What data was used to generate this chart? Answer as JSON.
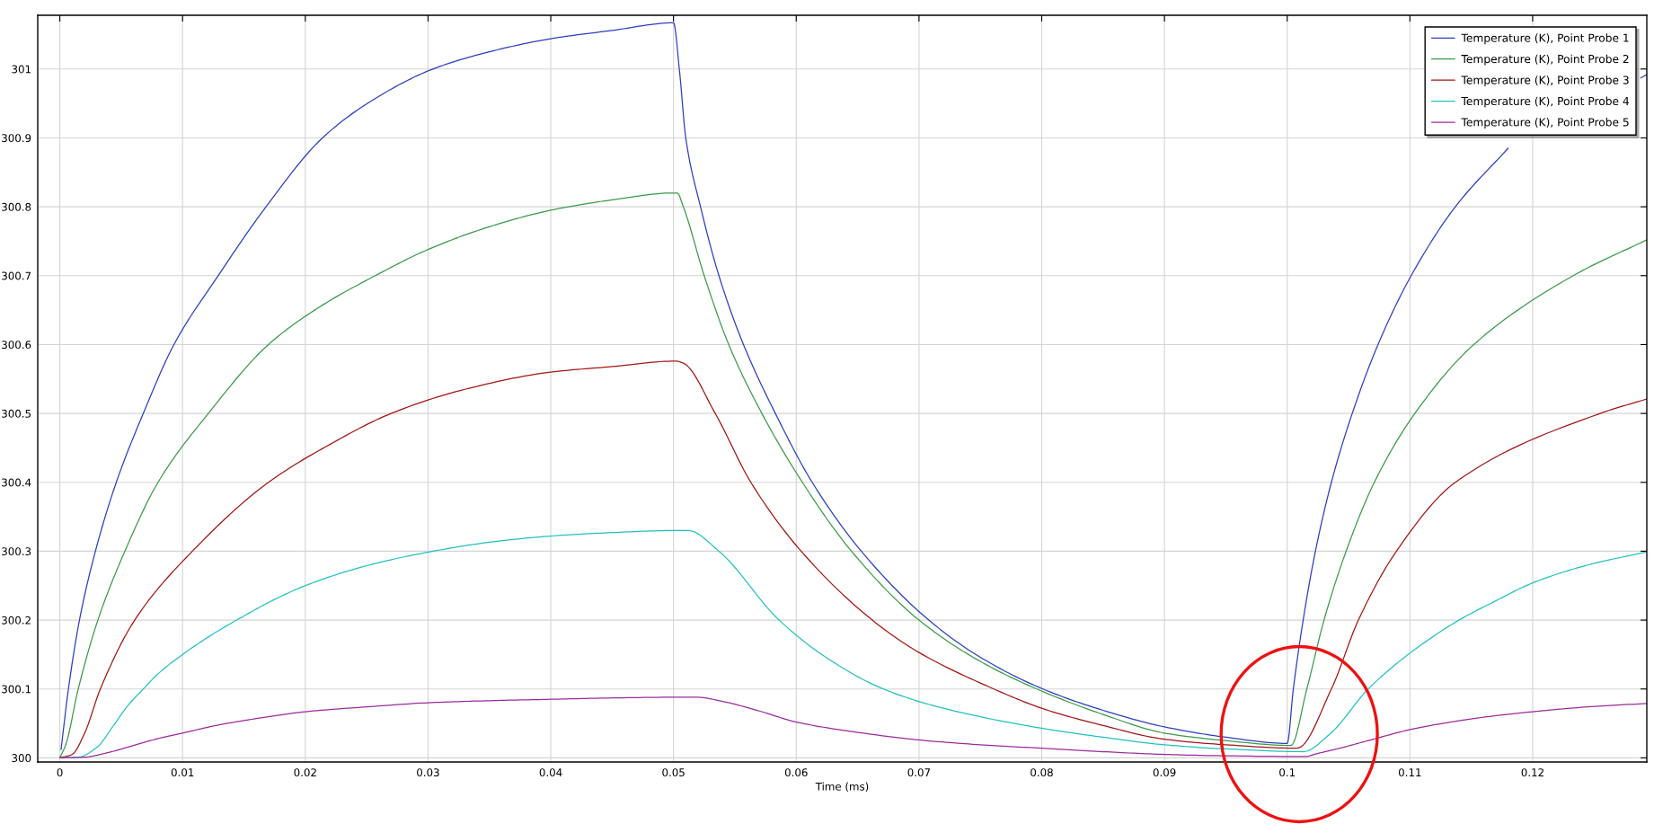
{
  "chart_data": {
    "type": "line",
    "xlabel": "Time (ms)",
    "xlim": [
      -0.0018,
      0.1293
    ],
    "ylim": [
      299.994,
      301.078
    ],
    "xticks": [
      0,
      0.01,
      0.02,
      0.03,
      0.04,
      0.05,
      0.06,
      0.07,
      0.08,
      0.09,
      0.1,
      0.11,
      0.12
    ],
    "yticks": [
      300,
      300.1,
      300.2,
      300.3,
      300.4,
      300.5,
      300.6,
      300.7,
      300.8,
      300.9,
      301
    ],
    "grid": true,
    "legend": "top right",
    "line_style": "solid",
    "series": [
      {
        "name": "Temperature (K), Point Probe 1",
        "color": "#2b3fbf",
        "x": [
          0.0001,
          0.0007,
          0.0016,
          0.0029,
          0.0046,
          0.0068,
          0.0093,
          0.0129,
          0.0168,
          0.0214,
          0.0255,
          0.0304,
          0.035,
          0.04,
          0.045,
          0.05,
          0.0505,
          0.051,
          0.0522,
          0.0537,
          0.0557,
          0.0583,
          0.0613,
          0.0653,
          0.0708,
          0.075,
          0.0801,
          0.085,
          0.09,
          0.095,
          0.1,
          0.1005,
          0.1013,
          0.1023,
          0.1036,
          0.1053,
          0.1074,
          0.1101,
          0.1137,
          0.118,
          0.124,
          0.1288,
          0.1293
        ],
        "values": [
          300.012,
          300.1,
          300.2,
          300.3,
          300.4,
          300.5,
          300.6,
          300.7,
          300.8,
          300.9,
          300.955,
          301.0,
          301.025,
          301.044,
          301.056,
          301.067,
          300.995,
          300.9,
          300.8,
          300.7,
          300.6,
          300.5,
          300.4,
          300.3,
          300.2,
          300.146,
          300.1,
          300.069,
          300.045,
          300.03,
          300.021,
          300.1,
          300.2,
          300.3,
          300.4,
          300.5,
          300.6,
          300.7,
          300.8,
          300.885,
          null,
          300.987,
          300.992
        ]
      },
      {
        "name": "Temperature (K), Point Probe 2",
        "color": "#3a9a4a",
        "x": [
          0,
          0.0005,
          0.0015,
          0.0031,
          0.0053,
          0.008,
          0.0121,
          0.017,
          0.0212,
          0.0257,
          0.03,
          0.035,
          0.04,
          0.045,
          0.05,
          0.0503,
          0.0508,
          0.0525,
          0.0545,
          0.0572,
          0.0605,
          0.0645,
          0.07,
          0.075,
          0.0796,
          0.085,
          0.09,
          0.095,
          0.1003,
          0.1016,
          0.103,
          0.1048,
          0.1071,
          0.1104,
          0.1152,
          0.1233,
          0.1293
        ],
        "values": [
          300,
          300.02,
          300.1,
          300.2,
          300.3,
          300.4,
          300.5,
          300.6,
          300.655,
          300.7,
          300.738,
          300.771,
          300.795,
          300.81,
          300.82,
          300.82,
          300.8,
          300.7,
          300.6,
          300.5,
          300.4,
          300.3,
          300.2,
          300.14,
          300.1,
          300.063,
          300.036,
          300.025,
          300.018,
          300.1,
          300.2,
          300.3,
          300.4,
          300.5,
          300.6,
          300.7,
          300.752
        ]
      },
      {
        "name": "Temperature (K), Point Probe 3",
        "color": "#a31515",
        "x": [
          0,
          0.001,
          0.002,
          0.0033,
          0.0061,
          0.0108,
          0.017,
          0.022,
          0.027,
          0.033,
          0.04,
          0.045,
          0.0502,
          0.0508,
          0.0534,
          0.0563,
          0.0604,
          0.0662,
          0.07,
          0.0761,
          0.08,
          0.085,
          0.09,
          0.095,
          0.1008,
          0.1036,
          0.1058,
          0.1089,
          0.1137,
          0.1255,
          0.1293
        ],
        "values": [
          300,
          300.005,
          300.035,
          300.1,
          300.2,
          300.3,
          300.4,
          300.455,
          300.5,
          300.535,
          300.56,
          300.568,
          300.576,
          300.573,
          300.5,
          300.4,
          300.3,
          300.2,
          300.153,
          300.1,
          300.072,
          300.047,
          300.027,
          300.019,
          300.014,
          300.1,
          300.2,
          300.3,
          300.4,
          300.5,
          300.521
        ]
      },
      {
        "name": "Temperature (K), Point Probe 4",
        "color": "#22c0c0",
        "x": [
          0,
          0.0015,
          0.003,
          0.0043,
          0.0055,
          0.0068,
          0.008,
          0.01,
          0.0125,
          0.015,
          0.0175,
          0.02,
          0.025,
          0.0304,
          0.035,
          0.04,
          0.045,
          0.05,
          0.0512,
          0.0537,
          0.0586,
          0.0625,
          0.0671,
          0.072,
          0.08,
          0.085,
          0.09,
          0.095,
          0.1013,
          0.1035,
          0.1066,
          0.11,
          0.114,
          0.117,
          0.12,
          0.1245,
          0.1293
        ],
        "values": [
          300,
          300.001,
          300.015,
          300.045,
          300.075,
          300.1,
          300.122,
          300.15,
          300.18,
          300.206,
          300.23,
          300.25,
          300.279,
          300.3,
          300.313,
          300.322,
          300.327,
          300.33,
          300.33,
          300.3,
          300.2,
          300.145,
          300.1,
          300.072,
          300.043,
          300.03,
          300.019,
          300.013,
          300.009,
          300.035,
          300.1,
          300.152,
          300.2,
          300.228,
          300.254,
          300.28,
          300.299
        ]
      },
      {
        "name": "Temperature (K), Point Probe 5",
        "color": "#9b2b9b",
        "x": [
          0,
          0.002,
          0.004,
          0.006,
          0.008,
          0.01,
          0.013,
          0.016,
          0.02,
          0.025,
          0.03,
          0.035,
          0.04,
          0.045,
          0.05,
          0.0519,
          0.054,
          0.057,
          0.06,
          0.065,
          0.07,
          0.075,
          0.08,
          0.085,
          0.09,
          0.095,
          0.1015,
          0.1024,
          0.1045,
          0.107,
          0.11,
          0.113,
          0.116,
          0.12,
          0.1245,
          0.1293
        ],
        "values": [
          300,
          300.001,
          300.008,
          300.018,
          300.028,
          300.036,
          300.048,
          300.057,
          300.067,
          300.074,
          300.08,
          300.083,
          300.085,
          300.087,
          300.088,
          300.088,
          300.082,
          300.068,
          300.052,
          300.037,
          300.026,
          300.019,
          300.014,
          300.009,
          300.005,
          300.003,
          300.002,
          300.006,
          300.015,
          300.027,
          300.041,
          300.051,
          300.059,
          300.067,
          300.074,
          300.079
        ]
      }
    ]
  }
}
